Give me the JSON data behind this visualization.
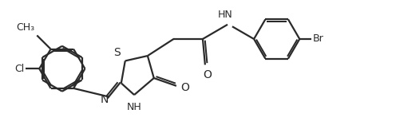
{
  "bg_color": "#ffffff",
  "line_color": "#2a2a2a",
  "line_width": 1.6,
  "font_size": 9,
  "figsize": [
    4.96,
    1.72
  ],
  "dpi": 100,
  "xlim": [
    0,
    10
  ],
  "ylim": [
    0,
    3.45
  ]
}
